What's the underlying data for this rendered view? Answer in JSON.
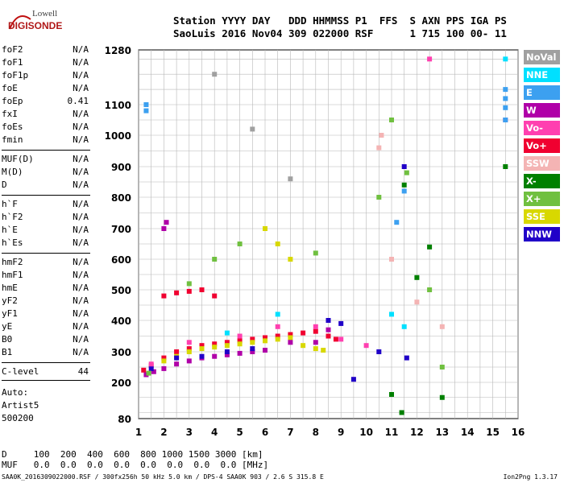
{
  "brand": {
    "line1": "Lowell",
    "line2": "DIGISONDE"
  },
  "header": {
    "line1": "Station YYYY DAY   DDD HHMMSS P1  FFS  S AXN PPS IGA PS",
    "line2": "SaoLuis 2016 Nov04 309 022000 RSF      1 715 100 00- 11"
  },
  "params": [
    {
      "name": "foF2",
      "value": "N/A"
    },
    {
      "name": "foF1",
      "value": "N/A"
    },
    {
      "name": "foF1p",
      "value": "N/A"
    },
    {
      "name": "foE",
      "value": "N/A"
    },
    {
      "name": "foEp",
      "value": "0.41"
    },
    {
      "name": "fxI",
      "value": "N/A"
    },
    {
      "name": "foEs",
      "value": "N/A"
    },
    {
      "name": "fmin",
      "value": "N/A"
    },
    {
      "name": "MUF(D)",
      "value": "N/A"
    },
    {
      "name": "M(D)",
      "value": "N/A"
    },
    {
      "name": "D",
      "value": "N/A"
    },
    {
      "name": "h`F",
      "value": "N/A"
    },
    {
      "name": "h`F2",
      "value": "N/A"
    },
    {
      "name": "h`E",
      "value": "N/A"
    },
    {
      "name": "h`Es",
      "value": "N/A"
    },
    {
      "name": "hmF2",
      "value": "N/A"
    },
    {
      "name": "hmF1",
      "value": "N/A"
    },
    {
      "name": "hmE",
      "value": "N/A"
    },
    {
      "name": "yF2",
      "value": "N/A"
    },
    {
      "name": "yF1",
      "value": "N/A"
    },
    {
      "name": "yE",
      "value": "N/A"
    },
    {
      "name": "B0",
      "value": "N/A"
    },
    {
      "name": "B1",
      "value": "N/A"
    },
    {
      "name": "C-level",
      "value": "44"
    }
  ],
  "auto": {
    "line1": "Auto:",
    "line2": "Artist5",
    "line3": "500200"
  },
  "legend": [
    {
      "label": "NoVal",
      "color": "#a0a0a0"
    },
    {
      "label": "NNE",
      "color": "#00e0ff"
    },
    {
      "label": "E",
      "color": "#3ca0f0"
    },
    {
      "label": "W",
      "color": "#b000a8"
    },
    {
      "label": "Vo-",
      "color": "#ff40b0"
    },
    {
      "label": "Vo+",
      "color": "#f00030"
    },
    {
      "label": "SSW",
      "color": "#f4b4b4"
    },
    {
      "label": "X-",
      "color": "#008000"
    },
    {
      "label": "X+",
      "color": "#70c040"
    },
    {
      "label": "SSE",
      "color": "#d8d800"
    },
    {
      "label": "NNW",
      "color": "#2000c8"
    }
  ],
  "bottom": {
    "d_row": "D     100  200  400  600  800 1000 1500 3000 [km]",
    "muf_row": "MUF   0.0  0.0  0.0  0.0  0.0  0.0  0.0  0.0 [MHz]"
  },
  "footer": {
    "text": "SAA0K_2016309022000.RSF / 300fx256h 50 kHz 5.0 km / DPS-4 SAA0K 903 / 2.6 S 315.8 E",
    "version": "Ion2Png 1.3.17"
  },
  "chart_data": {
    "type": "scatter",
    "title": "",
    "xlabel": "",
    "ylabel": "",
    "x_ticks": [
      1,
      2,
      3,
      4,
      5,
      6,
      7,
      8,
      9,
      10,
      11,
      12,
      13,
      14,
      15,
      16
    ],
    "y_ticks": [
      80,
      200,
      300,
      400,
      500,
      600,
      700,
      800,
      900,
      1000,
      1100,
      1280
    ],
    "xlim": [
      1,
      16
    ],
    "ylim": [
      80,
      1280
    ],
    "y_scale": "ionogram (nonlinear: 80, 200, 300...1100 evenly spaced, 1280 at top)",
    "grid": true,
    "series": [
      {
        "color": "#f00030",
        "points": [
          [
            1.2,
            240
          ],
          [
            1.5,
            255
          ],
          [
            2.0,
            280
          ],
          [
            2.5,
            300
          ],
          [
            3.0,
            310
          ],
          [
            3.5,
            320
          ],
          [
            4.0,
            325
          ],
          [
            4.5,
            330
          ],
          [
            5.0,
            335
          ],
          [
            5.5,
            340
          ],
          [
            6.0,
            345
          ],
          [
            6.5,
            350
          ],
          [
            7.0,
            355
          ],
          [
            7.5,
            360
          ],
          [
            8.0,
            365
          ],
          [
            8.5,
            350
          ],
          [
            8.8,
            340
          ],
          [
            2.0,
            480
          ],
          [
            2.5,
            490
          ],
          [
            3.0,
            495
          ],
          [
            3.5,
            500
          ],
          [
            4.0,
            480
          ]
        ]
      },
      {
        "color": "#d8d800",
        "points": [
          [
            2.0,
            270
          ],
          [
            2.5,
            285
          ],
          [
            3.0,
            300
          ],
          [
            3.5,
            310
          ],
          [
            4.0,
            315
          ],
          [
            4.5,
            320
          ],
          [
            5.0,
            325
          ],
          [
            5.5,
            330
          ],
          [
            6.0,
            335
          ],
          [
            6.5,
            340
          ],
          [
            7.0,
            345
          ],
          [
            7.5,
            320
          ],
          [
            8.0,
            310
          ],
          [
            8.3,
            305
          ],
          [
            6.0,
            700
          ],
          [
            6.5,
            650
          ],
          [
            7.0,
            600
          ]
        ]
      },
      {
        "color": "#b000a8",
        "points": [
          [
            1.3,
            225
          ],
          [
            1.6,
            235
          ],
          [
            2.0,
            245
          ],
          [
            2.5,
            260
          ],
          [
            3.0,
            270
          ],
          [
            3.5,
            280
          ],
          [
            4.0,
            285
          ],
          [
            4.5,
            290
          ],
          [
            5.0,
            295
          ],
          [
            5.5,
            300
          ],
          [
            6.0,
            305
          ],
          [
            7.0,
            330
          ],
          [
            8.0,
            330
          ],
          [
            8.5,
            370
          ],
          [
            2.0,
            700
          ],
          [
            2.1,
            720
          ]
        ]
      },
      {
        "color": "#2000c8",
        "points": [
          [
            1.5,
            245
          ],
          [
            2.5,
            280
          ],
          [
            3.5,
            285
          ],
          [
            4.5,
            300
          ],
          [
            5.5,
            310
          ],
          [
            8.5,
            400
          ],
          [
            9.0,
            390
          ],
          [
            9.5,
            210
          ],
          [
            10.5,
            300
          ],
          [
            11.5,
            900
          ],
          [
            11.6,
            280
          ]
        ]
      },
      {
        "color": "#70c040",
        "points": [
          [
            1.4,
            230
          ],
          [
            3.0,
            520
          ],
          [
            4.0,
            600
          ],
          [
            5.0,
            650
          ],
          [
            8.0,
            620
          ],
          [
            10.5,
            800
          ],
          [
            11.0,
            1050
          ],
          [
            11.6,
            880
          ],
          [
            12.5,
            500
          ],
          [
            13.0,
            250
          ]
        ]
      },
      {
        "color": "#008000",
        "points": [
          [
            11.0,
            160
          ],
          [
            11.4,
            100
          ],
          [
            11.5,
            840
          ],
          [
            12.0,
            540
          ],
          [
            12.5,
            640
          ],
          [
            13.0,
            150
          ],
          [
            15.5,
            900
          ]
        ]
      },
      {
        "color": "#ff40b0",
        "points": [
          [
            1.5,
            260
          ],
          [
            3.0,
            330
          ],
          [
            5.0,
            350
          ],
          [
            6.5,
            380
          ],
          [
            8.0,
            380
          ],
          [
            9.0,
            340
          ],
          [
            10.0,
            320
          ],
          [
            12.5,
            1250
          ],
          [
            15.5,
            1050
          ]
        ]
      },
      {
        "color": "#3ca0f0",
        "points": [
          [
            1.3,
            1100
          ],
          [
            1.3,
            1080
          ],
          [
            15.5,
            1150
          ],
          [
            15.5,
            1120
          ],
          [
            15.5,
            1090
          ],
          [
            15.5,
            1050
          ],
          [
            11.5,
            820
          ],
          [
            11.2,
            720
          ]
        ]
      },
      {
        "color": "#00e0ff",
        "points": [
          [
            4.5,
            360
          ],
          [
            6.5,
            420
          ],
          [
            11.0,
            420
          ],
          [
            11.5,
            380
          ],
          [
            15.5,
            1250
          ]
        ]
      },
      {
        "color": "#f4b4b4",
        "points": [
          [
            10.5,
            960
          ],
          [
            10.6,
            1000
          ],
          [
            11.0,
            600
          ],
          [
            12.0,
            460
          ],
          [
            13.0,
            380
          ]
        ]
      },
      {
        "color": "#a0a0a0",
        "points": [
          [
            4.0,
            1200
          ],
          [
            5.5,
            1020
          ],
          [
            7.0,
            860
          ]
        ]
      }
    ]
  }
}
